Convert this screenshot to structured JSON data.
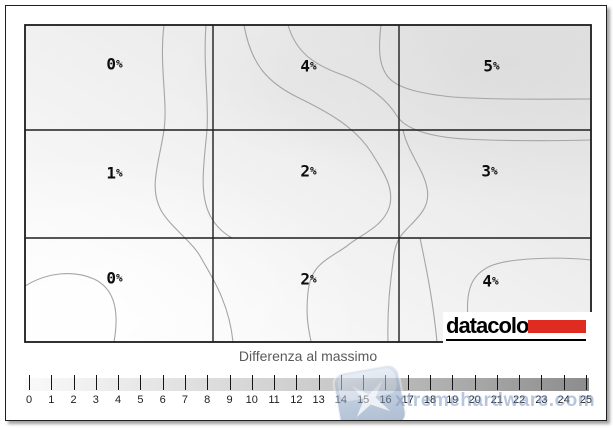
{
  "chart_data": {
    "type": "heatmap",
    "title": "Differenza al massimo",
    "rows": 3,
    "cols": 3,
    "values": [
      [
        0,
        4,
        5
      ],
      [
        1,
        2,
        3
      ],
      [
        0,
        2,
        4
      ]
    ],
    "unit": "%",
    "colorbar": {
      "label": "Differenza al massimo",
      "min": 0,
      "max": 25,
      "tick_step": 1,
      "position": "bottom",
      "gradient": [
        "#fafafa",
        "#8c8c8c"
      ]
    }
  },
  "grid": {
    "cells": [
      {
        "value": "0",
        "unit": "%"
      },
      {
        "value": "4",
        "unit": "%"
      },
      {
        "value": "5",
        "unit": "%"
      },
      {
        "value": "1",
        "unit": "%"
      },
      {
        "value": "2",
        "unit": "%"
      },
      {
        "value": "3",
        "unit": "%"
      },
      {
        "value": "0",
        "unit": "%"
      },
      {
        "value": "2",
        "unit": "%"
      },
      {
        "value": "4",
        "unit": "%"
      }
    ]
  },
  "colorbar": {
    "title": "Differenza al massimo",
    "ticks": [
      "0",
      "1",
      "2",
      "3",
      "4",
      "5",
      "6",
      "7",
      "8",
      "9",
      "10",
      "11",
      "12",
      "13",
      "14",
      "15",
      "16",
      "17",
      "18",
      "19",
      "20",
      "21",
      "22",
      "23",
      "24",
      "25"
    ]
  },
  "logo": {
    "text": "datacolor",
    "bar_color": "#e02b20"
  },
  "watermark": {
    "text": "xtremehardware.com",
    "color": "#7d96c3"
  },
  "colors": {
    "contour_line": "#a5a5a5",
    "grid_line": "#1e1e1e",
    "plot_light": "#fdfdfd",
    "plot_dark": "#e1e1e1"
  }
}
